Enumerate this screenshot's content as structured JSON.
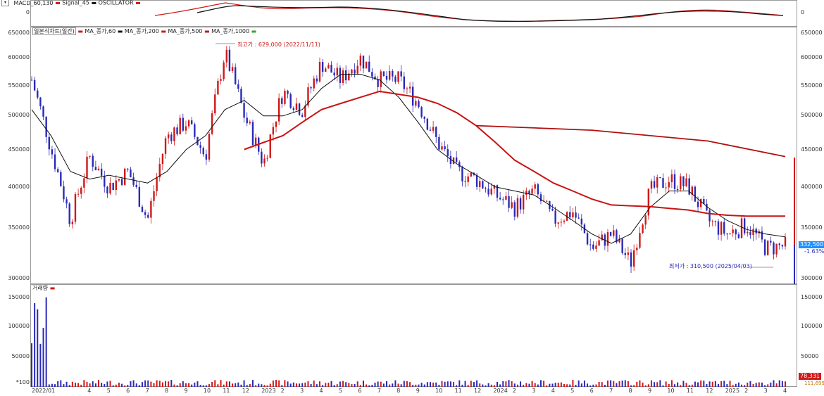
{
  "macd": {
    "legend_macd": "MACD_60,130",
    "legend_signal": "Signal_45",
    "legend_osc": "OSCILLATOR",
    "zero_label": "0",
    "colors": {
      "macd": "#d01818",
      "signal": "#111111"
    }
  },
  "price": {
    "chart_title": "일본식차트(일간)",
    "ma_labels": [
      "MA_종가,60",
      "MA_종가,200",
      "MA_종가,500",
      "MA_종가,1000"
    ],
    "high_label": "최고가 : 629,000 (2022/11/11)",
    "low_label": "최저가 : 310,500 (2025/04/03)",
    "current_price": "332,500",
    "current_change": "-1.63%",
    "y_ticks": [
      "650000",
      "600000",
      "550000",
      "500000",
      "450000",
      "400000",
      "350000",
      "300000"
    ],
    "colors": {
      "up": "#d01818",
      "down": "#2a2ab8",
      "ma60": "#111111",
      "ma200": "#c81414",
      "badge": "#1e90ff",
      "change": "#2a2ab8"
    }
  },
  "volume": {
    "legend": "거래량",
    "y_ticks": [
      "150000",
      "100000",
      "50000"
    ],
    "unit_label": "*100",
    "current_volume": "78,331",
    "sub_value": "111,699"
  },
  "xaxis": {
    "labels": [
      "2022/01",
      "4",
      "5",
      "6",
      "7",
      "8",
      "9",
      "10",
      "11",
      "12",
      "2023",
      "2",
      "3",
      "4",
      "5",
      "6",
      "7",
      "8",
      "9",
      "10",
      "11",
      "12",
      "2024",
      "2",
      "3",
      "4",
      "5",
      "6",
      "7",
      "8",
      "9",
      "10",
      "11",
      "12",
      "2025",
      "2",
      "3",
      "4"
    ]
  },
  "chart_data": {
    "type": "candlestick",
    "x_range": [
      "2022/01",
      "2025/04"
    ],
    "ylim": [
      300000,
      650000
    ],
    "price_points": [
      {
        "date": "2022-01",
        "price": 560000
      },
      {
        "date": "2022-02",
        "price": 450000
      },
      {
        "date": "2022-03",
        "price": 360000
      },
      {
        "date": "2022-04",
        "price": 440000
      },
      {
        "date": "2022-05",
        "price": 400000
      },
      {
        "date": "2022-06",
        "price": 420000
      },
      {
        "date": "2022-07",
        "price": 360000
      },
      {
        "date": "2022-08",
        "price": 470000
      },
      {
        "date": "2022-09",
        "price": 490000
      },
      {
        "date": "2022-10",
        "price": 440000
      },
      {
        "date": "2022-11",
        "price": 610000
      },
      {
        "date": "2022-12",
        "price": 500000
      },
      {
        "date": "2023-01",
        "price": 430000
      },
      {
        "date": "2023-02",
        "price": 540000
      },
      {
        "date": "2023-03",
        "price": 510000
      },
      {
        "date": "2023-04",
        "price": 590000
      },
      {
        "date": "2023-05",
        "price": 560000
      },
      {
        "date": "2023-06",
        "price": 600000
      },
      {
        "date": "2023-07",
        "price": 560000
      },
      {
        "date": "2023-08",
        "price": 560000
      },
      {
        "date": "2023-09",
        "price": 520000
      },
      {
        "date": "2023-10",
        "price": 460000
      },
      {
        "date": "2023-11",
        "price": 420000
      },
      {
        "date": "2023-12",
        "price": 410000
      },
      {
        "date": "2024-01",
        "price": 390000
      },
      {
        "date": "2024-02",
        "price": 375000
      },
      {
        "date": "2024-03",
        "price": 395000
      },
      {
        "date": "2024-04",
        "price": 360000
      },
      {
        "date": "2024-05",
        "price": 370000
      },
      {
        "date": "2024-06",
        "price": 330000
      },
      {
        "date": "2024-07",
        "price": 345000
      },
      {
        "date": "2024-08",
        "price": 315000
      },
      {
        "date": "2024-09",
        "price": 395000
      },
      {
        "date": "2024-10",
        "price": 410000
      },
      {
        "date": "2024-11",
        "price": 400000
      },
      {
        "date": "2024-12",
        "price": 360000
      },
      {
        "date": "2025-01",
        "price": 345000
      },
      {
        "date": "2025-02",
        "price": 355000
      },
      {
        "date": "2025-03",
        "price": 330000
      },
      {
        "date": "2025-04",
        "price": 332500
      }
    ],
    "ma_60": [
      510000,
      470000,
      420000,
      410000,
      415000,
      410000,
      405000,
      420000,
      450000,
      470000,
      510000,
      525000,
      500000,
      500000,
      510000,
      545000,
      570000,
      570000,
      560000,
      530000,
      490000,
      450000,
      430000,
      415000,
      400000,
      395000,
      390000,
      375000,
      360000,
      345000,
      335000,
      345000,
      375000,
      395000,
      395000,
      375000,
      360000,
      350000,
      345000,
      342000
    ],
    "ma_200": [
      null,
      null,
      null,
      null,
      null,
      null,
      null,
      null,
      null,
      null,
      null,
      450000,
      460000,
      470000,
      490000,
      510000,
      520000,
      530000,
      540000,
      535000,
      530000,
      520000,
      505000,
      485000,
      460000,
      435000,
      420000,
      405000,
      395000,
      385000,
      378000,
      377000,
      376000,
      374000,
      372000,
      368000,
      366000,
      365000,
      365000,
      365000
    ],
    "ma_500": [
      {
        "date": "2023-12",
        "price": 485000
      },
      {
        "date": "2024-06",
        "price": 478000
      },
      {
        "date": "2024-12",
        "price": 462000
      },
      {
        "date": "2025-04",
        "price": 440000
      }
    ],
    "high": {
      "value": 629000,
      "date": "2022/11/11"
    },
    "low": {
      "value": 310500,
      "date": "2025/04/03"
    }
  }
}
